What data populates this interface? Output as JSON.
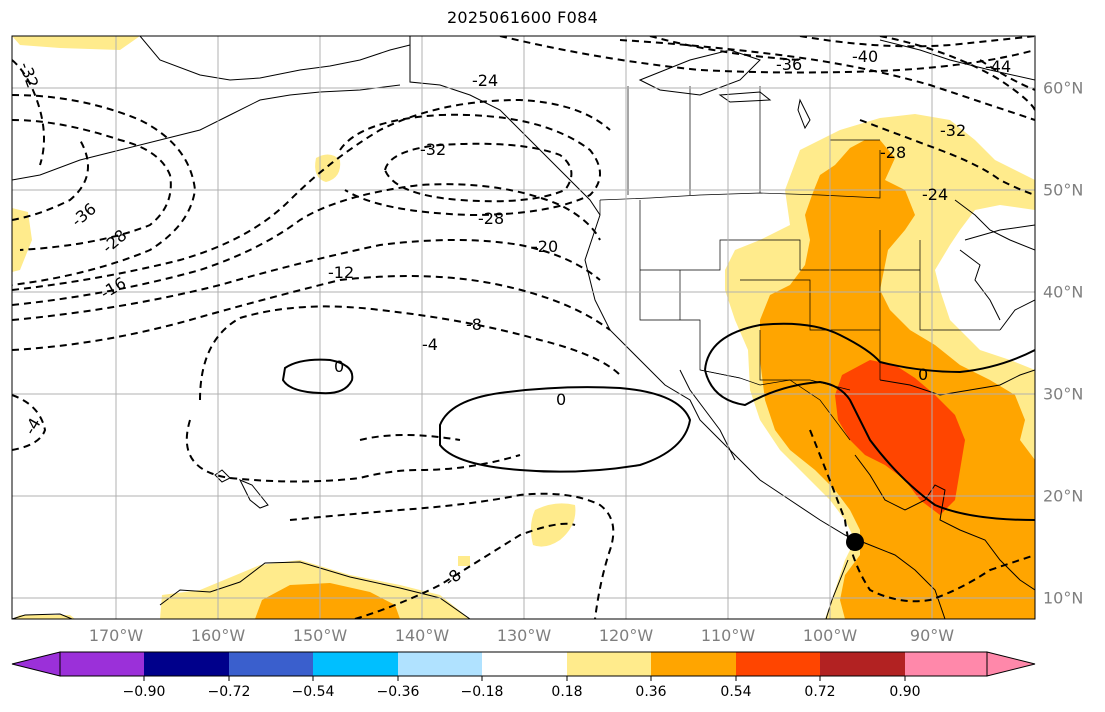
{
  "title": "2025061600 F084",
  "map": {
    "lon_range": [
      -180,
      -80
    ],
    "lat_range": [
      8,
      65
    ],
    "lon_ticks": [
      {
        "lon": -170,
        "label": "170°W"
      },
      {
        "lon": -160,
        "label": "160°W"
      },
      {
        "lon": -150,
        "label": "150°W"
      },
      {
        "lon": -140,
        "label": "140°W"
      },
      {
        "lon": -130,
        "label": "130°W"
      },
      {
        "lon": -120,
        "label": "120°W"
      },
      {
        "lon": -110,
        "label": "110°W"
      },
      {
        "lon": -100,
        "label": "100°W"
      },
      {
        "lon": -90,
        "label": "90°W"
      }
    ],
    "lat_ticks": [
      {
        "lat": 10,
        "label": "10°N"
      },
      {
        "lat": 20,
        "label": "20°N"
      },
      {
        "lat": 30,
        "label": "30°N"
      },
      {
        "lat": 40,
        "label": "40°N"
      },
      {
        "lat": 50,
        "label": "50°N"
      },
      {
        "lat": 60,
        "label": "60°N"
      }
    ],
    "grid": true,
    "contour_labels": [
      "-32",
      "-24",
      "-36",
      "-40",
      "-44",
      "-32",
      "-28",
      "-24",
      "-32",
      "-28",
      "-36",
      "-28",
      "-20",
      "-16",
      "-12",
      "-8",
      "-4",
      "0",
      "0",
      "0",
      "-4",
      "-8"
    ],
    "marker_location": {
      "lon": -98,
      "lat": 15.5
    },
    "colors": {
      "fill_018_036": "#ffeb8c",
      "fill_036_054": "#ffa500",
      "fill_054_072": "#ff4500",
      "land_line": "#000000",
      "grid": "#b0b0b0"
    }
  },
  "colorbar": {
    "colors": [
      "#9b30d9",
      "#00008b",
      "#3a5fcd",
      "#00bfff",
      "#b0e2ff",
      "#ffffff",
      "#ffeb8c",
      "#ffa500",
      "#ff4500",
      "#b22222",
      "#ff88aa"
    ],
    "tick_labels": [
      "−0.90",
      "−0.72",
      "−0.54",
      "−0.36",
      "−0.18",
      "0.18",
      "0.36",
      "0.54",
      "0.72",
      "0.90"
    ]
  }
}
